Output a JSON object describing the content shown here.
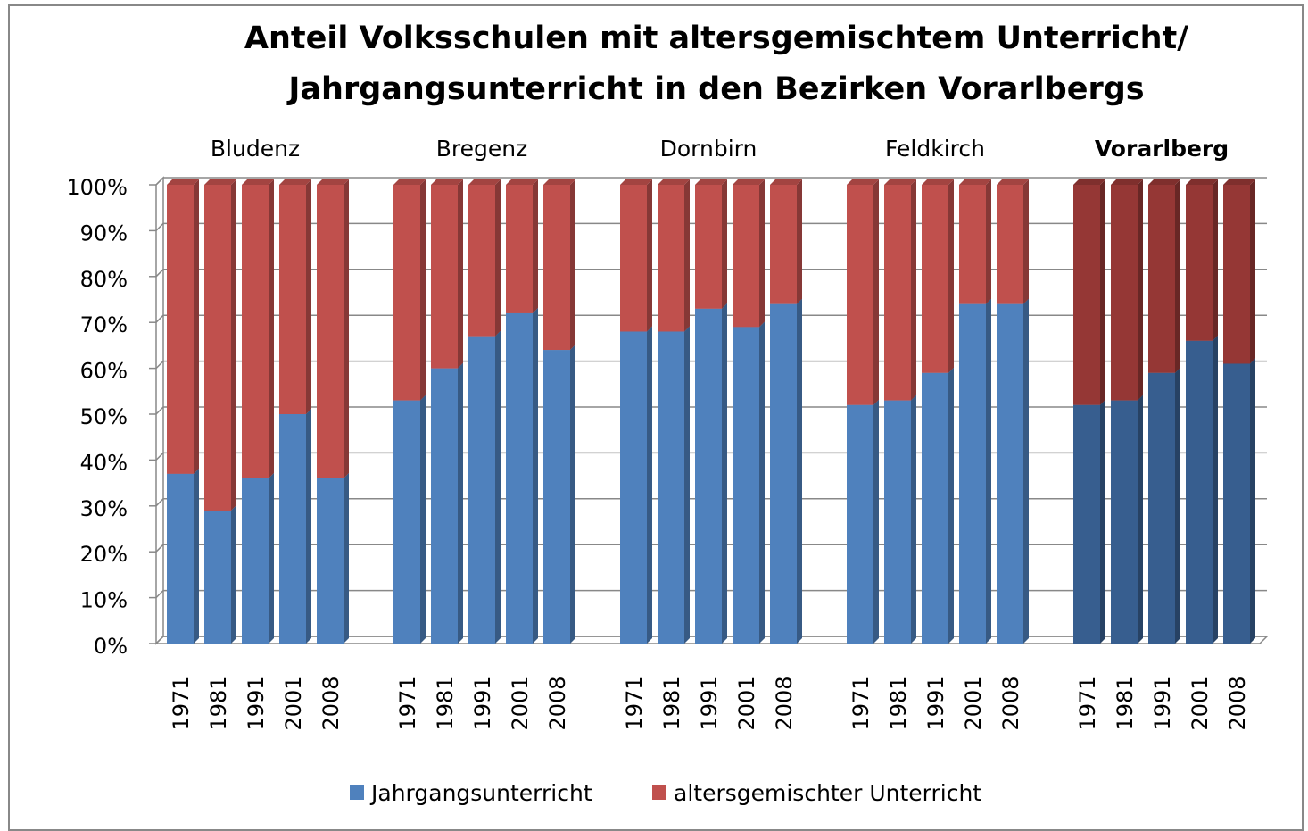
{
  "chart_data": {
    "type": "bar",
    "stacked": true,
    "title": [
      "Anteil Volksschulen mit altersgemischtem Unterricht/",
      "Jahrgangsunterricht  in den Bezirken Vorarlbergs"
    ],
    "groups": [
      {
        "name": "Bludenz",
        "categories": [
          "1971",
          "1981",
          "1991",
          "2001",
          "2008"
        ]
      },
      {
        "name": "Bregenz",
        "categories": [
          "1971",
          "1981",
          "1991",
          "2001",
          "2008"
        ]
      },
      {
        "name": "Dornbirn",
        "categories": [
          "1971",
          "1981",
          "1991",
          "2001",
          "2008"
        ]
      },
      {
        "name": "Feldkirch",
        "categories": [
          "1971",
          "1981",
          "1991",
          "2001",
          "2008"
        ]
      },
      {
        "name": "Vorarlberg",
        "categories": [
          "1971",
          "1981",
          "1991",
          "2001",
          "2008"
        ],
        "highlight": true
      }
    ],
    "series": [
      {
        "name": "Jahrgangsunterricht",
        "color": "#4f81bd",
        "highlight_color": "#375e8f",
        "values": [
          37,
          29,
          36,
          50,
          36,
          53,
          60,
          67,
          72,
          64,
          68,
          68,
          73,
          69,
          74,
          52,
          53,
          59,
          74,
          74,
          52,
          53,
          59,
          66,
          61
        ]
      },
      {
        "name": "altersgemischter Unterricht",
        "color": "#c0504d",
        "highlight_color": "#953735",
        "values": [
          63,
          71,
          64,
          50,
          64,
          47,
          40,
          33,
          28,
          36,
          32,
          32,
          27,
          31,
          26,
          48,
          47,
          41,
          26,
          26,
          48,
          47,
          41,
          34,
          39
        ]
      }
    ],
    "ylim": [
      0,
      100
    ],
    "yticks": [
      {
        "value": 0,
        "label": "0%"
      },
      {
        "value": 10,
        "label": "10%"
      },
      {
        "value": 20,
        "label": "20%"
      },
      {
        "value": 30,
        "label": "30%"
      },
      {
        "value": 40,
        "label": "40%"
      },
      {
        "value": 50,
        "label": "50%"
      },
      {
        "value": 60,
        "label": "60%"
      },
      {
        "value": 70,
        "label": "70%"
      },
      {
        "value": 80,
        "label": "80%"
      },
      {
        "value": 90,
        "label": "90%"
      },
      {
        "value": 100,
        "label": "100%"
      }
    ],
    "grid": true
  }
}
